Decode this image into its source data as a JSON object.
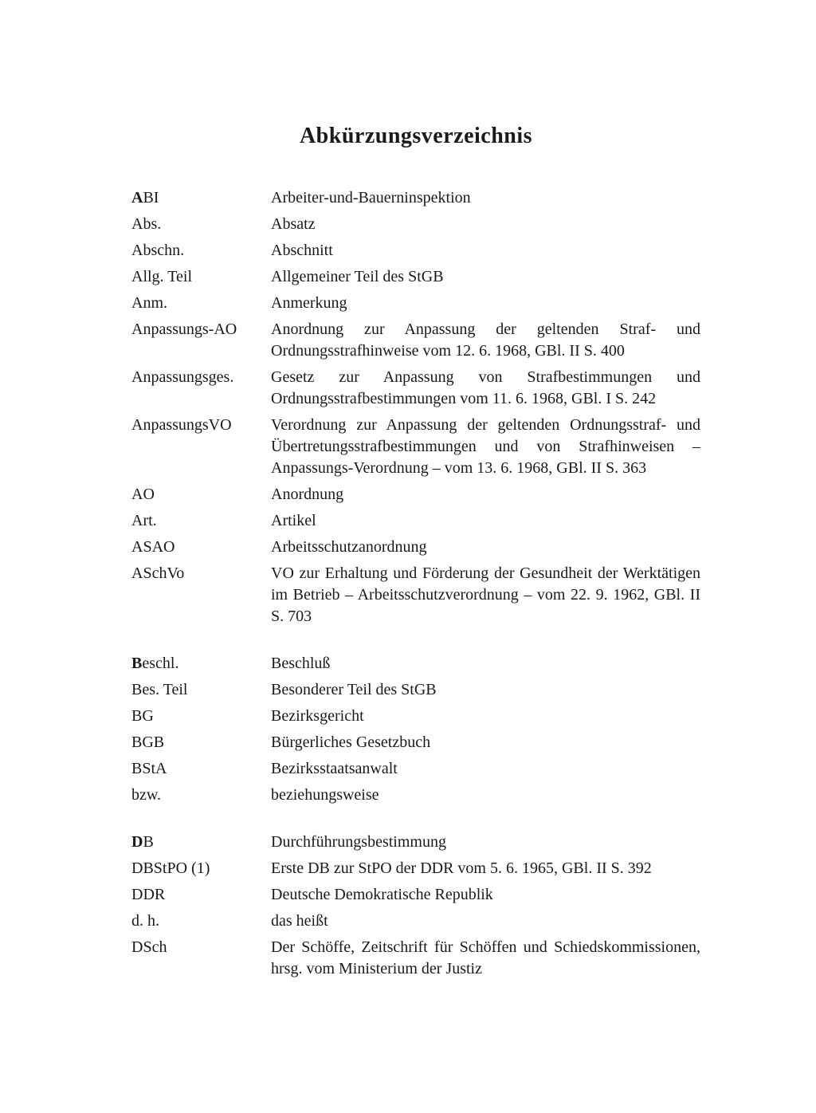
{
  "title": "Abkürzungsverzeichnis",
  "groups": [
    {
      "entries": [
        {
          "abbr": "ABI",
          "bold": true,
          "def": "Arbeiter-und-Bauerninspektion"
        },
        {
          "abbr": "Abs.",
          "bold": false,
          "def": "Absatz"
        },
        {
          "abbr": "Abschn.",
          "bold": false,
          "def": "Abschnitt"
        },
        {
          "abbr": "Allg. Teil",
          "bold": false,
          "def": "Allgemeiner Teil des StGB"
        },
        {
          "abbr": "Anm.",
          "bold": false,
          "def": "Anmerkung"
        },
        {
          "abbr": "Anpassungs-AO",
          "bold": false,
          "def": "Anordnung zur Anpassung der geltenden Straf- und Ordnungsstrafhinweise vom 12. 6. 1968, GBl. II S. 400"
        },
        {
          "abbr": "Anpassungsges.",
          "bold": false,
          "def": "Gesetz zur Anpassung von Strafbestimmungen und Ordnungsstrafbestimmungen vom 11. 6. 1968, GBl. I S. 242"
        },
        {
          "abbr": "AnpassungsVO",
          "bold": false,
          "def": "Verordnung zur Anpassung der geltenden Ordnungsstraf- und Übertretungsstrafbestimmungen und von Strafhinweisen – Anpassungs-Verordnung – vom 13. 6. 1968, GBl. II S. 363"
        },
        {
          "abbr": "AO",
          "bold": false,
          "def": "Anordnung"
        },
        {
          "abbr": "Art.",
          "bold": false,
          "def": "Artikel"
        },
        {
          "abbr": "ASAO",
          "bold": false,
          "def": "Arbeitsschutzanordnung"
        },
        {
          "abbr": "ASchVo",
          "bold": false,
          "def": "VO zur Erhaltung und Förderung der Gesundheit der Werktätigen im Betrieb – Arbeitsschutzverordnung – vom 22. 9. 1962, GBl. II S. 703"
        }
      ]
    },
    {
      "entries": [
        {
          "abbr": "Beschl.",
          "bold": true,
          "def": "Beschluß"
        },
        {
          "abbr": "Bes. Teil",
          "bold": false,
          "def": "Besonderer Teil des StGB"
        },
        {
          "abbr": "BG",
          "bold": false,
          "def": "Bezirksgericht"
        },
        {
          "abbr": "BGB",
          "bold": false,
          "def": "Bürgerliches Gesetzbuch"
        },
        {
          "abbr": "BStA",
          "bold": false,
          "def": "Bezirksstaatsanwalt"
        },
        {
          "abbr": "bzw.",
          "bold": false,
          "def": "beziehungsweise"
        }
      ]
    },
    {
      "entries": [
        {
          "abbr": "DB",
          "bold": true,
          "def": "Durchführungsbestimmung"
        },
        {
          "abbr": "DBStPO (1)",
          "bold": false,
          "def": "Erste DB zur StPO der DDR vom 5. 6. 1965, GBl. II S. 392"
        },
        {
          "abbr": "DDR",
          "bold": false,
          "def": "Deutsche Demokratische Republik"
        },
        {
          "abbr": "d. h.",
          "bold": false,
          "def": "das heißt"
        },
        {
          "abbr": "DSch",
          "bold": false,
          "def": "Der Schöffe, Zeitschrift für Schöffen und Schiedskommissionen, hrsg. vom Ministerium der Justiz"
        }
      ]
    }
  ]
}
